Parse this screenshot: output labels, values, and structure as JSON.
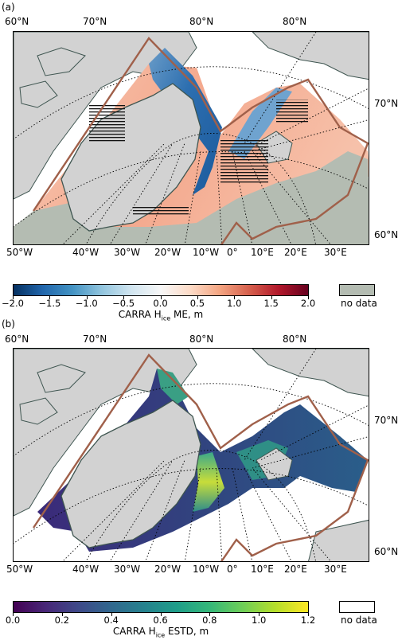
{
  "chart_data": [
    {
      "type": "heatmap",
      "panel_label": "(a)",
      "colormap": "RdBu_r",
      "colorbar": {
        "ticks": [
          "−2.0",
          "−1.5",
          "−1.0",
          "−0.5",
          "0.0",
          "0.5",
          "1.0",
          "1.5",
          "2.0"
        ],
        "range": [
          -2.0,
          2.0
        ],
        "title_prefix": "CARRA H",
        "title_sub": "ice",
        "title_suffix": " ME, m",
        "nodata_label": "no data",
        "nodata_color": "#b4bcb2"
      },
      "lat_labels_top": [
        "60°N",
        "70°N",
        "80°N",
        "80°N"
      ],
      "lat_labels_right": [
        "70°N",
        "60°N"
      ],
      "lon_labels_bottom": [
        "50°W",
        "40°W",
        "30°W",
        "20°W",
        "10°W",
        "0°",
        "10°E",
        "20°E",
        "30°E"
      ]
    },
    {
      "type": "heatmap",
      "panel_label": "(b)",
      "colormap": "viridis",
      "colorbar": {
        "ticks": [
          "0.0",
          "0.2",
          "0.4",
          "0.6",
          "0.8",
          "1.0",
          "1.2"
        ],
        "range": [
          0.0,
          1.2
        ],
        "title_prefix": "CARRA H",
        "title_sub": "ice",
        "title_suffix": " ESTD, m",
        "nodata_label": "no data",
        "nodata_color": "#ffffff"
      },
      "lat_labels_top": [
        "60°N",
        "70°N",
        "80°N",
        "80°N"
      ],
      "lat_labels_right": [
        "70°N",
        "60°N"
      ],
      "lon_labels_bottom": [
        "50°W",
        "40°W",
        "30°W",
        "20°W",
        "10°W",
        "0°",
        "10°E",
        "20°E",
        "30°E"
      ]
    }
  ],
  "colors": {
    "land": "#d2d2d2",
    "coast": "#3e5550",
    "domain_border": "#a0604a",
    "nodata_a": "#b4bcb2"
  }
}
